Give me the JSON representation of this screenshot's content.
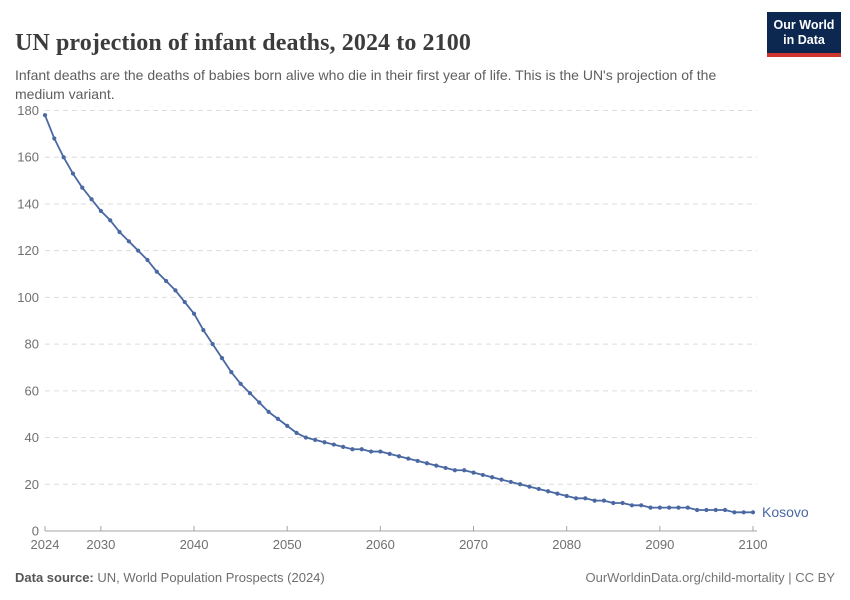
{
  "header": {
    "title": "UN projection of infant deaths, 2024 to 2100",
    "subtitle": "Infant deaths are the deaths of babies born alive who die in their first year of life. This is the UN's projection of the medium variant.",
    "logo": {
      "line1": "Our World",
      "line2": "in Data",
      "bg_color": "#0c2850",
      "stripe_color": "#d0342e"
    }
  },
  "chart_data": {
    "type": "line",
    "title": "UN projection of infant deaths, 2024 to 2100",
    "xlabel": "",
    "ylabel": "",
    "xlim": [
      2024,
      2100
    ],
    "ylim": [
      0,
      180
    ],
    "x_ticks": [
      2024,
      2030,
      2040,
      2050,
      2060,
      2070,
      2080,
      2090,
      2100
    ],
    "y_ticks": [
      0,
      20,
      40,
      60,
      80,
      100,
      120,
      140,
      160,
      180
    ],
    "grid": "horizontal-dashed",
    "legend_position": "label-at-line-end",
    "colors": {
      "line": "#4a68a2",
      "grid": "#dcdcdc",
      "axis": "#a5a5a5",
      "tick_label": "#707070"
    },
    "series": [
      {
        "name": "Kosovo",
        "color": "#4a68a2",
        "x_start": 2024,
        "x_step": 1,
        "x_end": 2100,
        "values": [
          178,
          168,
          160,
          153,
          147,
          142,
          137,
          133,
          128,
          124,
          120,
          116,
          111,
          107,
          103,
          98,
          93,
          86,
          80,
          74,
          68,
          63,
          59,
          55,
          51,
          48,
          45,
          42,
          40,
          39,
          38,
          37,
          36,
          35,
          35,
          34,
          34,
          33,
          32,
          31,
          30,
          29,
          28,
          27,
          26,
          26,
          25,
          24,
          23,
          22,
          21,
          20,
          19,
          18,
          17,
          16,
          15,
          14,
          14,
          13,
          13,
          12,
          12,
          11,
          11,
          10,
          10,
          10,
          10,
          10,
          9,
          9,
          9,
          9,
          8,
          8,
          8
        ]
      }
    ]
  },
  "footer": {
    "source_label": "Data source:",
    "source_value": " UN, World Population Prospects (2024)",
    "link_text": "OurWorldinData.org/child-mortality | CC BY"
  }
}
